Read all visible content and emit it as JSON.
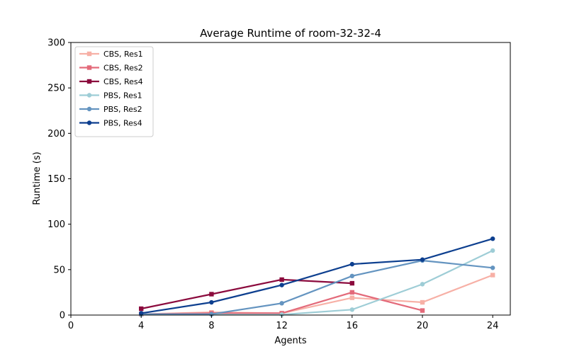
{
  "chart_data": {
    "type": "line",
    "title": "Average Runtime of room-32-32-4",
    "xlabel": "Agents",
    "ylabel": "Runtime (s)",
    "xlim": [
      0,
      25
    ],
    "ylim": [
      0,
      300
    ],
    "xticks": [
      0,
      4,
      8,
      12,
      16,
      20,
      24
    ],
    "yticks": [
      0,
      50,
      100,
      150,
      200,
      250,
      300
    ],
    "grid": false,
    "legend_position": "top-left",
    "series": [
      {
        "name": "CBS, Res1",
        "color": "#f7b0a6",
        "marker": "square",
        "x": [
          4,
          8,
          12,
          16,
          20,
          24
        ],
        "y": [
          1,
          3,
          2,
          19,
          14,
          44
        ]
      },
      {
        "name": "CBS, Res2",
        "color": "#e36a7a",
        "marker": "square",
        "x": [
          4,
          8,
          12,
          16,
          20
        ],
        "y": [
          1,
          2,
          2,
          25,
          5
        ]
      },
      {
        "name": "CBS, Res4",
        "color": "#8b0a3d",
        "marker": "square",
        "x": [
          4,
          8,
          12,
          16
        ],
        "y": [
          7,
          23,
          39,
          35
        ]
      },
      {
        "name": "PBS, Res1",
        "color": "#9ecdd6",
        "marker": "circle",
        "x": [
          4,
          8,
          12,
          16,
          20,
          24
        ],
        "y": [
          0.5,
          0.5,
          0.5,
          6,
          34,
          71
        ]
      },
      {
        "name": "PBS, Res2",
        "color": "#6494c0",
        "marker": "circle",
        "x": [
          4,
          8,
          12,
          16,
          20,
          24
        ],
        "y": [
          1,
          1,
          13,
          43,
          60,
          52
        ]
      },
      {
        "name": "PBS, Res4",
        "color": "#0d3f8f",
        "marker": "circle",
        "x": [
          4,
          8,
          12,
          16,
          20,
          24
        ],
        "y": [
          2,
          14,
          33,
          56,
          61,
          84
        ]
      }
    ]
  }
}
